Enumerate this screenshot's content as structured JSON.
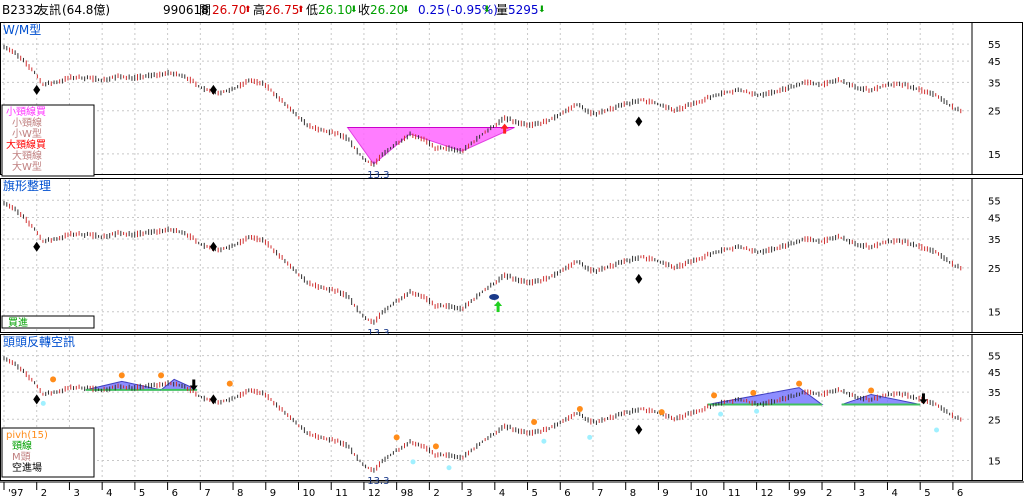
{
  "header": {
    "code": "B2332",
    "name": "友訊",
    "cap": "(64.8億)",
    "date": "990618",
    "open_label": "開",
    "open": "26.70",
    "high_label": "高",
    "high": "26.75",
    "low_label": "低",
    "low": "26.10",
    "close_label": "收",
    "close": "26.20",
    "change": "0.25",
    "change_pct": "(-0.95%)",
    "volume_label": "量",
    "volume": "5295",
    "arrow_up": "⬆",
    "arrow_down": "⬇"
  },
  "colors": {
    "pattern_fill": "#ff66ff",
    "triangle_fill": "#7070ff",
    "m_line": "#40c060",
    "orange_dot": "#ff8c1a",
    "cyan_dot": "#a0f0ff",
    "green_arrow": "#20d020",
    "red_arrow": "#ff2020",
    "price_line": "#303030",
    "grid": "#c8c8c8"
  },
  "panels": [
    {
      "title": "W/M型",
      "legend": [
        {
          "text": "小頸線買",
          "color": "#ff33ff"
        },
        {
          "text": "小頸線",
          "color": "#c08080"
        },
        {
          "text": "小W型",
          "color": "#c08080"
        },
        {
          "text": "大頸線買",
          "color": "#ff0000"
        },
        {
          "text": "大頸線",
          "color": "#c08080"
        },
        {
          "text": "大W型",
          "color": "#c08080"
        }
      ],
      "annotation": "13.3",
      "signal_icons": [
        "buy-arrow-red",
        "diamond-marker"
      ]
    },
    {
      "title": "旗形整理",
      "legend": [
        {
          "text": "買進",
          "color": "#00a000"
        }
      ],
      "annotation": "13.3",
      "signal_icons": [
        "buy-arrow-green",
        "diamond-marker"
      ]
    },
    {
      "title": "頭頭反轉空訊",
      "legend": [
        {
          "text": "pivh(15)",
          "color": "#ff8c1a"
        },
        {
          "text": "頸線",
          "color": "#00a000"
        },
        {
          "text": "M頭",
          "color": "#c08080"
        },
        {
          "text": "空進場",
          "color": "#000000"
        }
      ],
      "annotation": "13.3",
      "signal_icons": [
        "sell-arrow-black",
        "diamond-marker"
      ]
    }
  ],
  "chart_data": {
    "type": "line",
    "scale": "log",
    "ylim": [
      13,
      62
    ],
    "y_ticks": [
      55,
      45,
      35,
      25,
      15
    ],
    "months": [
      "'97",
      "2",
      "3",
      "4",
      "5",
      "6",
      "7",
      "8",
      "9",
      "10",
      "11",
      "12",
      "'98",
      "2",
      "3",
      "4",
      "5",
      "6",
      "7",
      "8",
      "9",
      "10",
      "11",
      "12",
      "'99",
      "2",
      "3",
      "4",
      "5",
      "6"
    ],
    "x_tick_labels": [
      {
        "label": "'97",
        "month_index": 0
      },
      {
        "label": "2",
        "month_index": 1
      },
      {
        "label": "3",
        "month_index": 2
      },
      {
        "label": "4",
        "month_index": 3
      },
      {
        "label": "5",
        "month_index": 4
      },
      {
        "label": "6",
        "month_index": 5
      },
      {
        "label": "7",
        "month_index": 6
      },
      {
        "label": "8",
        "month_index": 7
      },
      {
        "label": "9",
        "month_index": 8
      },
      {
        "label": "10",
        "month_index": 9
      },
      {
        "label": "11",
        "month_index": 10
      },
      {
        "label": "12",
        "month_index": 11
      },
      {
        "label": "98",
        "month_index": 12
      },
      {
        "label": "2",
        "month_index": 13
      },
      {
        "label": "3",
        "month_index": 14
      },
      {
        "label": "4",
        "month_index": 15
      },
      {
        "label": "5",
        "month_index": 16
      },
      {
        "label": "6",
        "month_index": 17
      },
      {
        "label": "7",
        "month_index": 18
      },
      {
        "label": "8",
        "month_index": 19
      },
      {
        "label": "9",
        "month_index": 20
      },
      {
        "label": "10",
        "month_index": 21
      },
      {
        "label": "11",
        "month_index": 22
      },
      {
        "label": "12",
        "month_index": 23
      },
      {
        "label": "99",
        "month_index": 24
      },
      {
        "label": "2",
        "month_index": 25
      },
      {
        "label": "3",
        "month_index": 26
      },
      {
        "label": "4",
        "month_index": 27
      },
      {
        "label": "5",
        "month_index": 28
      },
      {
        "label": "6",
        "month_index": 29
      }
    ],
    "series": [
      {
        "t": [
          0,
          0.3,
          0.6,
          0.9,
          1.2,
          1.6,
          2.0,
          2.5,
          3.0,
          3.5,
          4.0,
          4.5,
          5.0,
          5.5,
          6.0,
          6.5,
          7.0,
          7.5,
          8.0,
          8.5,
          9.0,
          9.3,
          9.6,
          9.9,
          10.2,
          10.5,
          10.8,
          11.0,
          11.3,
          11.6,
          12.0,
          12.4,
          12.8,
          13.2,
          13.6,
          14.0,
          14.3,
          14.6,
          15.0,
          15.3,
          15.6,
          16.0,
          16.3,
          16.6,
          17.0,
          17.5,
          18.0,
          18.5,
          19.0,
          19.5,
          20.0,
          20.5,
          21.0,
          21.5,
          22.0,
          22.5,
          23.0,
          23.5,
          24.0,
          24.5,
          25.0,
          25.5,
          26.0,
          26.5,
          27.0,
          27.5,
          28.0,
          28.5,
          29.0,
          29.3
        ],
        "price": [
          54,
          50,
          45,
          40,
          34,
          35,
          37,
          37,
          36,
          37.5,
          37,
          38,
          39,
          38,
          33,
          31,
          32,
          36,
          34,
          28,
          23,
          21,
          20,
          19.5,
          19,
          18,
          15.5,
          14,
          13.3,
          15,
          17,
          19,
          18,
          16,
          16,
          15.5,
          17,
          18.8,
          21,
          23,
          22,
          21,
          21.5,
          22,
          24,
          27,
          24,
          25.5,
          27,
          28.5,
          27,
          25,
          27,
          29,
          31,
          32,
          30,
          31,
          33,
          35,
          34,
          36,
          33,
          32,
          34,
          34,
          32,
          30,
          26,
          24.5
        ]
      }
    ],
    "bands": [
      {
        "panel": 0,
        "label": "small-W-neckline",
        "t_start": 10.5,
        "t_end": 15.6,
        "neck_price": 20.5,
        "lows_t": [
          11.3,
          14.0
        ],
        "lows_price": [
          13.3,
          15.5
        ],
        "mid_t": 12.4,
        "mid_price": 19
      }
    ],
    "markers": [
      {
        "panel": 0,
        "kind": "diamond",
        "t": 1.0,
        "price": 32
      },
      {
        "panel": 0,
        "kind": "diamond",
        "t": 6.4,
        "price": 32
      },
      {
        "panel": 0,
        "kind": "diamond",
        "t": 19.4,
        "price": 22
      },
      {
        "panel": 0,
        "kind": "buy-arrow-red",
        "t": 15.3,
        "price": 20
      },
      {
        "panel": 1,
        "kind": "diamond",
        "t": 1.0,
        "price": 32
      },
      {
        "panel": 1,
        "kind": "diamond",
        "t": 6.4,
        "price": 32
      },
      {
        "panel": 1,
        "kind": "diamond",
        "t": 19.4,
        "price": 22
      },
      {
        "panel": 1,
        "kind": "buy-arrow-green",
        "t": 15.1,
        "price": 17
      },
      {
        "panel": 2,
        "kind": "diamond",
        "t": 1.0,
        "price": 32
      },
      {
        "panel": 2,
        "kind": "diamond",
        "t": 6.4,
        "price": 32
      },
      {
        "panel": 2,
        "kind": "diamond",
        "t": 19.4,
        "price": 22
      },
      {
        "panel": 2,
        "kind": "sell-arrow-black",
        "t": 5.8,
        "price": 38
      },
      {
        "panel": 2,
        "kind": "sell-arrow-black",
        "t": 28.1,
        "price": 32
      }
    ],
    "triangles": [
      {
        "panel": 2,
        "t": [
          2.5,
          3.6,
          4.8
        ],
        "price": [
          36,
          40,
          36
        ]
      },
      {
        "panel": 2,
        "t": [
          4.8,
          5.2,
          5.9
        ],
        "price": [
          36,
          41,
          36
        ]
      },
      {
        "panel": 2,
        "t": [
          21.5,
          24.3,
          25.0
        ],
        "price": [
          30,
          37,
          30
        ]
      },
      {
        "panel": 2,
        "t": [
          25.6,
          26.5,
          28.0
        ],
        "price": [
          30,
          34,
          30
        ]
      }
    ],
    "pivots": [
      {
        "panel": 2,
        "t": [
          1.5,
          3.6,
          4.8,
          6.9,
          12.0,
          13.2,
          16.2,
          17.6,
          20.1,
          21.7,
          22.9,
          24.3,
          26.5
        ],
        "price": [
          39,
          41,
          41,
          37,
          19,
          17,
          23,
          27,
          26,
          32,
          33,
          37,
          34
        ]
      }
    ],
    "lows_marks": [
      {
        "panel": 2,
        "t": [
          1.2,
          12.5,
          13.6,
          16.5,
          17.9,
          21.9,
          23.0,
          28.5
        ],
        "price": [
          32,
          15.5,
          14.4,
          20,
          21,
          28,
          29,
          23
        ]
      }
    ]
  }
}
